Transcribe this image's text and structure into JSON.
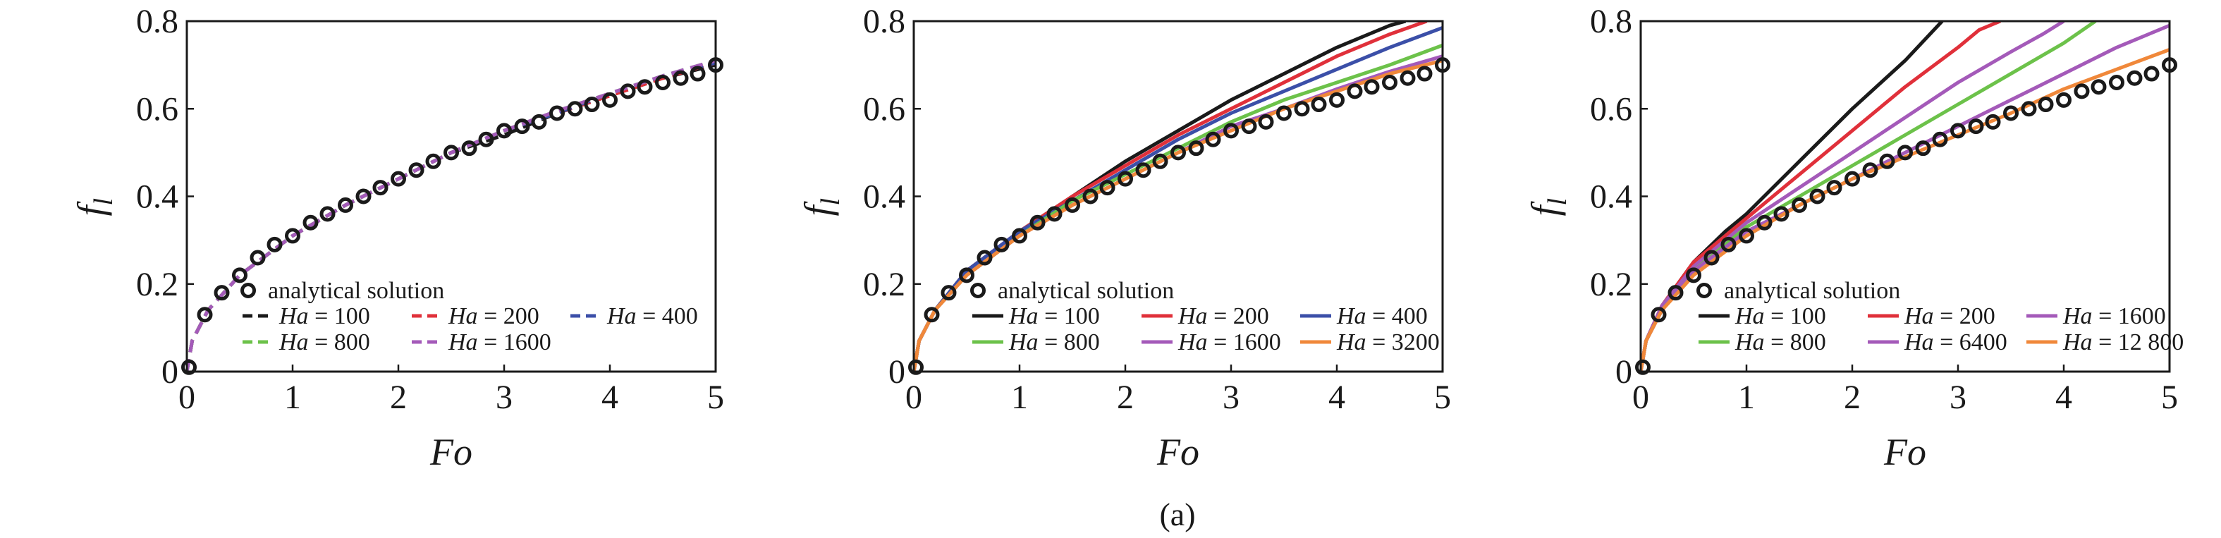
{
  "figure": {
    "caption": "(a)"
  },
  "colors": {
    "Ha = 100": "#1a1a1a",
    "Ha = 200": "#e0303a",
    "Ha = 400": "#3b4fa8",
    "Ha = 800": "#6cc24a",
    "Ha = 1600": "#a45ab9",
    "Ha = 3200": "#f0883a",
    "Ha = 6400": "#a45ab9",
    "Ha = 12 800": "#f0883a",
    "analytical": "#1a1a1a"
  },
  "chart_data": [
    {
      "type": "line",
      "xlabel": "Fo",
      "ylabel": "f_l",
      "xlim": [
        0,
        5
      ],
      "ylim": [
        0,
        0.8
      ],
      "xticks": [
        "0",
        "1",
        "2",
        "3",
        "4",
        "5"
      ],
      "yticks": [
        "0",
        "0.2",
        "0.4",
        "0.6",
        "0.8"
      ],
      "legend_placement": "bottom",
      "line_style": "dashed",
      "analytical_label": "analytical solution",
      "analytical": {
        "x": [
          0.02,
          0.17,
          0.33,
          0.5,
          0.67,
          0.83,
          1.0,
          1.17,
          1.33,
          1.5,
          1.67,
          1.83,
          2.0,
          2.17,
          2.33,
          2.5,
          2.67,
          2.83,
          3.0,
          3.17,
          3.33,
          3.5,
          3.67,
          3.83,
          4.0,
          4.17,
          4.33,
          4.5,
          4.67,
          4.83,
          5.0
        ],
        "y": [
          0.01,
          0.13,
          0.18,
          0.22,
          0.26,
          0.29,
          0.31,
          0.34,
          0.36,
          0.38,
          0.4,
          0.42,
          0.44,
          0.46,
          0.48,
          0.5,
          0.51,
          0.53,
          0.55,
          0.56,
          0.57,
          0.59,
          0.6,
          0.61,
          0.62,
          0.64,
          0.65,
          0.66,
          0.67,
          0.68,
          0.7
        ]
      },
      "series": [
        {
          "name": "Ha = 100",
          "x": [
            0,
            0.05,
            0.2,
            0.5,
            1,
            1.5,
            2,
            2.5,
            3,
            3.5,
            4,
            4.5,
            5
          ],
          "y": [
            0,
            0.07,
            0.14,
            0.22,
            0.31,
            0.38,
            0.44,
            0.5,
            0.54,
            0.59,
            0.63,
            0.67,
            0.7
          ]
        },
        {
          "name": "Ha = 200",
          "x": [
            0,
            0.05,
            0.2,
            0.5,
            1,
            1.5,
            2,
            2.5,
            3,
            3.5,
            4,
            4.5,
            5
          ],
          "y": [
            0,
            0.07,
            0.14,
            0.22,
            0.31,
            0.38,
            0.44,
            0.5,
            0.55,
            0.59,
            0.63,
            0.67,
            0.705
          ]
        },
        {
          "name": "Ha = 400",
          "x": [
            0,
            0.05,
            0.2,
            0.5,
            1,
            1.5,
            2,
            2.5,
            3,
            3.5,
            4,
            4.5,
            5
          ],
          "y": [
            0,
            0.07,
            0.14,
            0.22,
            0.31,
            0.38,
            0.44,
            0.5,
            0.55,
            0.59,
            0.635,
            0.675,
            0.705
          ]
        },
        {
          "name": "Ha = 800",
          "x": [
            0,
            0.05,
            0.2,
            0.5,
            1,
            1.5,
            2,
            2.5,
            3,
            3.5,
            4,
            4.5,
            5
          ],
          "y": [
            0,
            0.07,
            0.14,
            0.22,
            0.31,
            0.38,
            0.44,
            0.5,
            0.55,
            0.595,
            0.635,
            0.675,
            0.71
          ]
        },
        {
          "name": "Ha = 1600",
          "x": [
            0,
            0.05,
            0.2,
            0.5,
            1,
            1.5,
            2,
            2.5,
            3,
            3.5,
            4,
            4.5,
            5
          ],
          "y": [
            0,
            0.07,
            0.14,
            0.22,
            0.31,
            0.38,
            0.44,
            0.5,
            0.55,
            0.595,
            0.635,
            0.675,
            0.71
          ]
        }
      ]
    },
    {
      "type": "line",
      "xlabel": "Fo",
      "ylabel": "f_l",
      "xlim": [
        0,
        5
      ],
      "ylim": [
        0,
        0.8
      ],
      "xticks": [
        "0",
        "1",
        "2",
        "3",
        "4",
        "5"
      ],
      "yticks": [
        "0",
        "0.2",
        "0.4",
        "0.6",
        "0.8"
      ],
      "legend_placement": "bottom",
      "line_style": "solid",
      "analytical_label": "analytical solution",
      "analytical": {
        "x": [
          0.02,
          0.17,
          0.33,
          0.5,
          0.67,
          0.83,
          1.0,
          1.17,
          1.33,
          1.5,
          1.67,
          1.83,
          2.0,
          2.17,
          2.33,
          2.5,
          2.67,
          2.83,
          3.0,
          3.17,
          3.33,
          3.5,
          3.67,
          3.83,
          4.0,
          4.17,
          4.33,
          4.5,
          4.67,
          4.83,
          5.0
        ],
        "y": [
          0.01,
          0.13,
          0.18,
          0.22,
          0.26,
          0.29,
          0.31,
          0.34,
          0.36,
          0.38,
          0.4,
          0.42,
          0.44,
          0.46,
          0.48,
          0.5,
          0.51,
          0.53,
          0.55,
          0.56,
          0.57,
          0.59,
          0.6,
          0.61,
          0.62,
          0.64,
          0.65,
          0.66,
          0.67,
          0.68,
          0.7
        ]
      },
      "series": [
        {
          "name": "Ha = 100",
          "x": [
            0,
            0.05,
            0.2,
            0.5,
            1,
            1.5,
            2,
            2.5,
            3,
            3.5,
            4,
            4.5,
            4.65
          ],
          "y": [
            0,
            0.07,
            0.14,
            0.23,
            0.32,
            0.4,
            0.48,
            0.55,
            0.62,
            0.68,
            0.74,
            0.79,
            0.8
          ]
        },
        {
          "name": "Ha = 200",
          "x": [
            0,
            0.05,
            0.2,
            0.5,
            1,
            1.5,
            2,
            2.5,
            3,
            3.5,
            4,
            4.5,
            4.85
          ],
          "y": [
            0,
            0.07,
            0.14,
            0.23,
            0.32,
            0.4,
            0.47,
            0.54,
            0.6,
            0.66,
            0.72,
            0.77,
            0.8
          ]
        },
        {
          "name": "Ha = 400",
          "x": [
            0,
            0.05,
            0.2,
            0.5,
            1,
            1.5,
            2,
            2.5,
            3,
            3.5,
            4,
            4.5,
            5
          ],
          "y": [
            0,
            0.07,
            0.14,
            0.23,
            0.32,
            0.39,
            0.46,
            0.53,
            0.59,
            0.64,
            0.69,
            0.74,
            0.785
          ]
        },
        {
          "name": "Ha = 800",
          "x": [
            0,
            0.05,
            0.2,
            0.5,
            1,
            1.5,
            2,
            2.5,
            3,
            3.5,
            4,
            4.5,
            5
          ],
          "y": [
            0,
            0.07,
            0.14,
            0.22,
            0.31,
            0.39,
            0.45,
            0.51,
            0.57,
            0.62,
            0.66,
            0.7,
            0.745
          ]
        },
        {
          "name": "Ha = 1600",
          "x": [
            0,
            0.05,
            0.2,
            0.5,
            1,
            1.5,
            2,
            2.5,
            3,
            3.5,
            4,
            4.5,
            5
          ],
          "y": [
            0,
            0.07,
            0.14,
            0.22,
            0.31,
            0.38,
            0.44,
            0.5,
            0.56,
            0.6,
            0.645,
            0.685,
            0.72
          ]
        },
        {
          "name": "Ha = 3200",
          "x": [
            0,
            0.05,
            0.2,
            0.5,
            1,
            1.5,
            2,
            2.5,
            3,
            3.5,
            4,
            4.5,
            5
          ],
          "y": [
            0,
            0.07,
            0.14,
            0.22,
            0.31,
            0.38,
            0.44,
            0.5,
            0.55,
            0.6,
            0.64,
            0.68,
            0.71
          ]
        }
      ]
    },
    {
      "type": "line",
      "xlabel": "Fo",
      "ylabel": "f_l",
      "xlim": [
        0,
        5
      ],
      "ylim": [
        0,
        0.8
      ],
      "xticks": [
        "0",
        "1",
        "2",
        "3",
        "4",
        "5"
      ],
      "yticks": [
        "0",
        "0.2",
        "0.4",
        "0.6",
        "0.8"
      ],
      "legend_placement": "bottom",
      "line_style": "solid",
      "analytical_label": "analytical solution",
      "analytical": {
        "x": [
          0.02,
          0.17,
          0.33,
          0.5,
          0.67,
          0.83,
          1.0,
          1.17,
          1.33,
          1.5,
          1.67,
          1.83,
          2.0,
          2.17,
          2.33,
          2.5,
          2.67,
          2.83,
          3.0,
          3.17,
          3.33,
          3.5,
          3.67,
          3.83,
          4.0,
          4.17,
          4.33,
          4.5,
          4.67,
          4.83,
          5.0
        ],
        "y": [
          0.01,
          0.13,
          0.18,
          0.22,
          0.26,
          0.29,
          0.31,
          0.34,
          0.36,
          0.38,
          0.4,
          0.42,
          0.44,
          0.46,
          0.48,
          0.5,
          0.51,
          0.53,
          0.55,
          0.56,
          0.57,
          0.59,
          0.6,
          0.61,
          0.62,
          0.64,
          0.65,
          0.66,
          0.67,
          0.68,
          0.7
        ]
      },
      "series": [
        {
          "name": "Ha = 100",
          "x": [
            0,
            0.05,
            0.2,
            0.5,
            0.8,
            1,
            1.5,
            2,
            2.5,
            2.85
          ],
          "y": [
            0,
            0.07,
            0.15,
            0.25,
            0.32,
            0.36,
            0.48,
            0.6,
            0.71,
            0.8
          ]
        },
        {
          "name": "Ha = 200",
          "x": [
            0,
            0.05,
            0.2,
            0.5,
            0.8,
            1,
            1.5,
            2,
            2.5,
            3,
            3.2,
            3.4
          ],
          "y": [
            0,
            0.07,
            0.15,
            0.25,
            0.31,
            0.35,
            0.45,
            0.55,
            0.65,
            0.74,
            0.78,
            0.8
          ]
        },
        {
          "name": "Ha = 1600",
          "x": [
            0,
            0.05,
            0.2,
            0.5,
            0.8,
            1,
            1.5,
            2,
            2.5,
            3,
            3.5,
            3.8,
            4.0
          ],
          "y": [
            0,
            0.07,
            0.15,
            0.24,
            0.3,
            0.34,
            0.42,
            0.5,
            0.58,
            0.66,
            0.73,
            0.77,
            0.8
          ]
        },
        {
          "name": "Ha = 800",
          "x": [
            0,
            0.05,
            0.2,
            0.5,
            1,
            1.5,
            2,
            2.5,
            3,
            3.5,
            4,
            4.3
          ],
          "y": [
            0,
            0.07,
            0.14,
            0.23,
            0.33,
            0.4,
            0.47,
            0.54,
            0.61,
            0.68,
            0.75,
            0.8
          ]
        },
        {
          "name": "Ha = 6400",
          "x": [
            0,
            0.05,
            0.2,
            0.5,
            1,
            1.5,
            2,
            2.5,
            3,
            3.5,
            4,
            4.5,
            5
          ],
          "y": [
            0,
            0.07,
            0.14,
            0.23,
            0.32,
            0.38,
            0.44,
            0.5,
            0.56,
            0.62,
            0.68,
            0.74,
            0.79
          ]
        },
        {
          "name": "Ha = 12 800",
          "x": [
            0,
            0.05,
            0.2,
            0.5,
            1,
            1.5,
            2,
            2.5,
            3,
            3.5,
            4,
            4.5,
            5
          ],
          "y": [
            0,
            0.07,
            0.14,
            0.22,
            0.31,
            0.38,
            0.44,
            0.49,
            0.54,
            0.59,
            0.645,
            0.69,
            0.735
          ]
        }
      ]
    }
  ]
}
